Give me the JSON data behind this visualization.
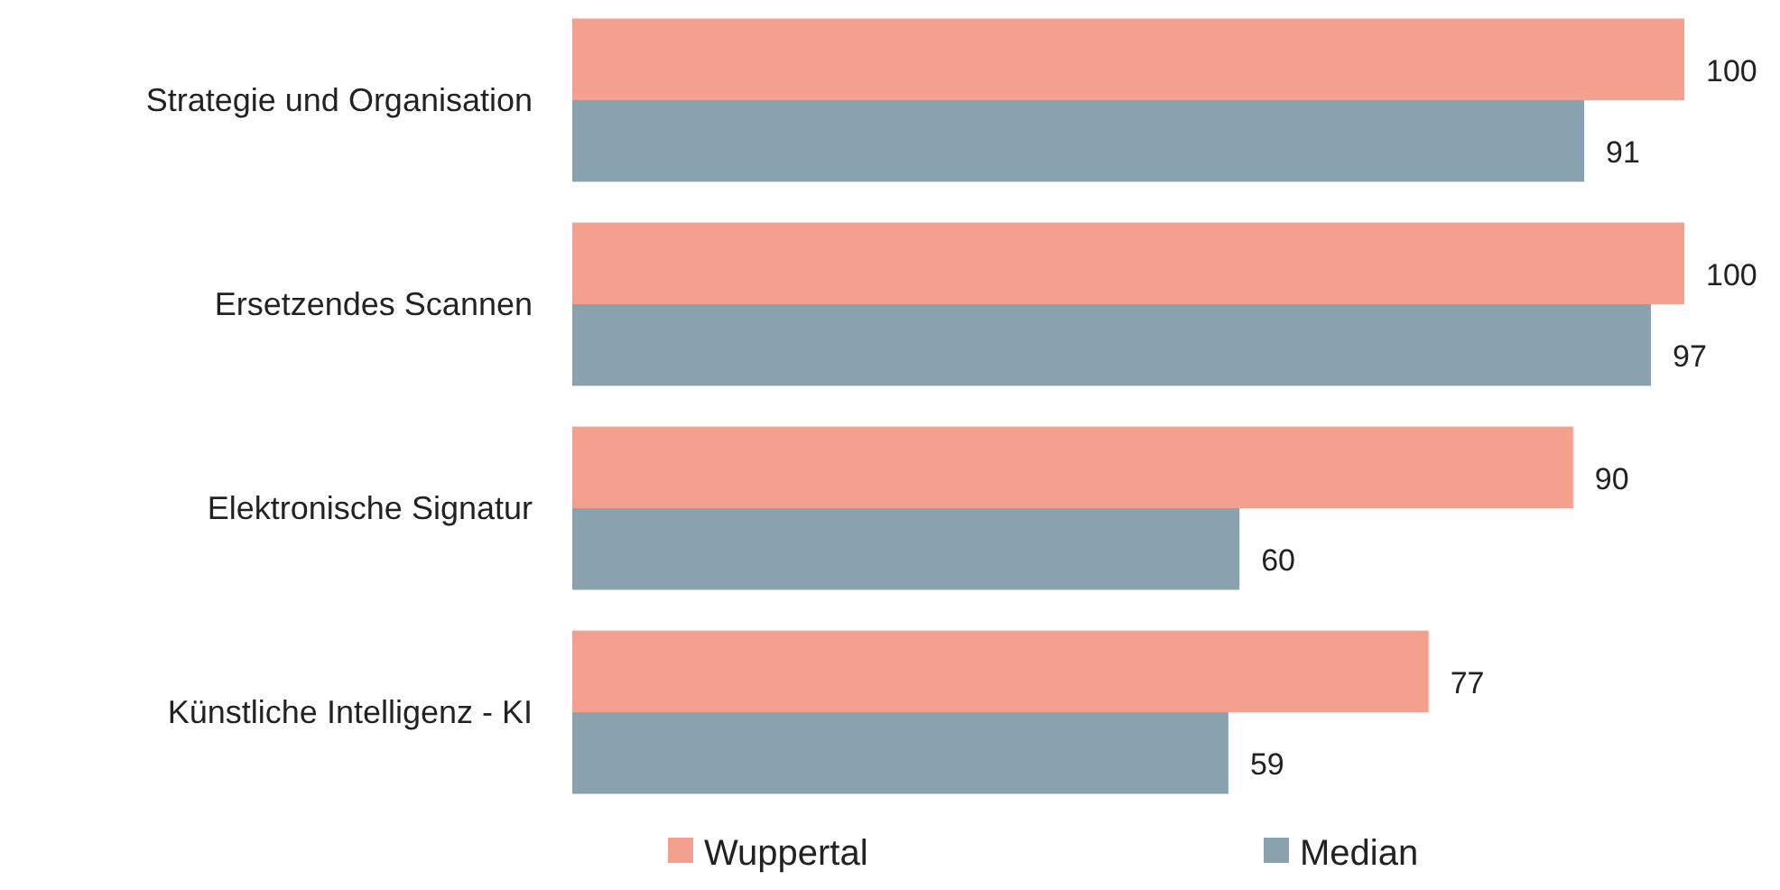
{
  "chart_data": {
    "type": "bar",
    "orientation": "horizontal",
    "categories": [
      "Strategie und Organisation",
      "Ersetzendes Scannen",
      "Elektronische Signatur",
      "Künstliche Intelligenz - KI"
    ],
    "series": [
      {
        "name": "Wuppertal",
        "color": "#f4a08e",
        "values": [
          100,
          100,
          90,
          77
        ]
      },
      {
        "name": "Median",
        "color": "#8aa2ad",
        "values": [
          91,
          97,
          60,
          59
        ]
      }
    ],
    "xlim": [
      0,
      100
    ],
    "data_labels": true,
    "legend": "bottom",
    "tick_labels": "y",
    "grid": false
  }
}
